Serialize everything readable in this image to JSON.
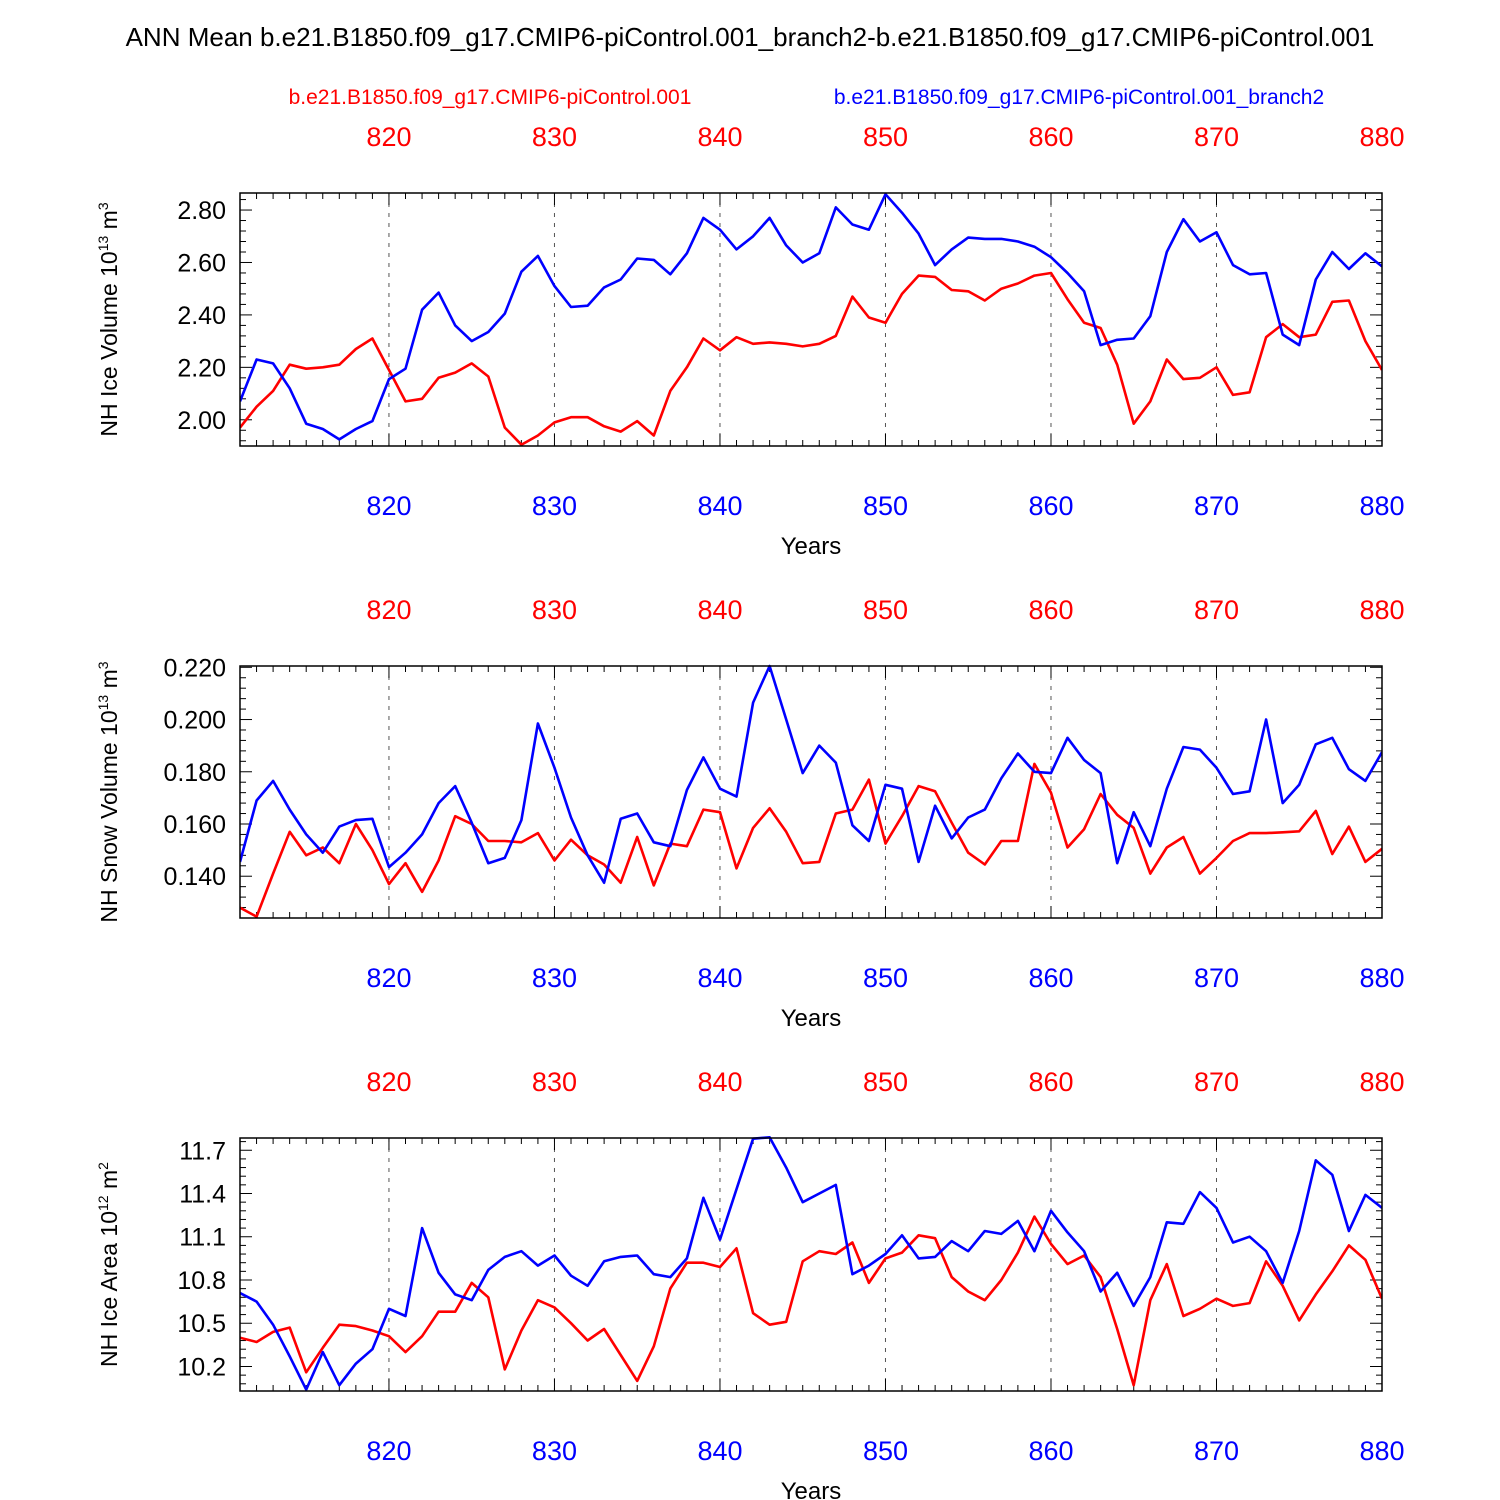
{
  "title": "ANN Mean b.e21.B1850.f09_g17.CMIP6-piControl.001_branch2-b.e21.B1850.f09_g17.CMIP6-piControl.001",
  "legend": [
    {
      "label": "b.e21.B1850.f09_g17.CMIP6-piControl.001",
      "color": "#ff0000"
    },
    {
      "label": "b.e21.B1850.f09_g17.CMIP6-piControl.001_branch2",
      "color": "#0000ff"
    }
  ],
  "colors": {
    "series1": "#ff0000",
    "series2": "#0000ff",
    "axis": "#000000",
    "grid": "#555555"
  },
  "chart_data": [
    {
      "type": "line",
      "id": "ice-volume",
      "ylabel": "NH Ice Volume 10",
      "ylabel_exp": "13",
      "ylabel_unit": " m",
      "ylabel_unit_exp": "3",
      "xlabel": "Years",
      "xlim": [
        811,
        880
      ],
      "ylim": [
        1.9,
        2.865
      ],
      "xticks": [
        820,
        830,
        840,
        850,
        860,
        870,
        880
      ],
      "yticks": [
        2.0,
        2.2,
        2.4,
        2.6,
        2.8
      ],
      "ytick_labels": [
        "2.00",
        "2.20",
        "2.40",
        "2.60",
        "2.80"
      ],
      "series": [
        {
          "name": "b.e21.B1850.f09_g17.CMIP6-piControl.001",
          "color": "#ff0000",
          "start": 811,
          "values": [
            1.97,
            2.05,
            2.11,
            2.21,
            2.195,
            2.2,
            2.21,
            2.27,
            2.31,
            2.19,
            2.07,
            2.08,
            2.16,
            2.18,
            2.215,
            2.165,
            1.97,
            1.905,
            1.94,
            1.99,
            2.01,
            2.01,
            1.975,
            1.955,
            1.995,
            1.94,
            2.11,
            2.2,
            2.31,
            2.265,
            2.315,
            2.29,
            2.295,
            2.29,
            2.28,
            2.29,
            2.32,
            2.47,
            2.39,
            2.37,
            2.48,
            2.55,
            2.545,
            2.495,
            2.49,
            2.455,
            2.5,
            2.52,
            2.55,
            2.56,
            2.46,
            2.37,
            2.35,
            2.21,
            1.985,
            2.07,
            2.23,
            2.155,
            2.16,
            2.2,
            2.095,
            2.105,
            2.315,
            2.365,
            2.315,
            2.325,
            2.45,
            2.455,
            2.3,
            2.19
          ]
        },
        {
          "name": "b.e21.B1850.f09_g17.CMIP6-piControl.001_branch2",
          "color": "#0000ff",
          "start": 811,
          "values": [
            2.07,
            2.23,
            2.215,
            2.12,
            1.985,
            1.965,
            1.925,
            1.965,
            1.995,
            2.155,
            2.195,
            2.42,
            2.485,
            2.36,
            2.3,
            2.335,
            2.405,
            2.565,
            2.625,
            2.51,
            2.43,
            2.435,
            2.505,
            2.535,
            2.615,
            2.61,
            2.555,
            2.635,
            2.77,
            2.725,
            2.65,
            2.7,
            2.77,
            2.665,
            2.6,
            2.635,
            2.81,
            2.745,
            2.725,
            2.86,
            2.79,
            2.71,
            2.59,
            2.65,
            2.695,
            2.69,
            2.69,
            2.68,
            2.66,
            2.62,
            2.56,
            2.49,
            2.285,
            2.305,
            2.31,
            2.395,
            2.64,
            2.765,
            2.68,
            2.715,
            2.59,
            2.555,
            2.56,
            2.325,
            2.285,
            2.535,
            2.64,
            2.575,
            2.635,
            2.585
          ]
        }
      ]
    },
    {
      "type": "line",
      "id": "snow-volume",
      "ylabel": "NH Snow Volume 10",
      "ylabel_exp": "13",
      "ylabel_unit": " m",
      "ylabel_unit_exp": "3",
      "xlabel": "Years",
      "xlim": [
        811,
        880
      ],
      "ylim": [
        0.124,
        0.2205
      ],
      "xticks": [
        820,
        830,
        840,
        850,
        860,
        870,
        880
      ],
      "yticks": [
        0.14,
        0.16,
        0.18,
        0.2,
        0.22
      ],
      "ytick_labels": [
        "0.140",
        "0.160",
        "0.180",
        "0.200",
        "0.220"
      ],
      "series": [
        {
          "name": "b.e21.B1850.f09_g17.CMIP6-piControl.001",
          "color": "#ff0000",
          "start": 811,
          "values": [
            0.128,
            0.1245,
            0.141,
            0.157,
            0.148,
            0.151,
            0.145,
            0.16,
            0.15,
            0.137,
            0.145,
            0.134,
            0.146,
            0.163,
            0.16,
            0.1535,
            0.1535,
            0.153,
            0.1565,
            0.146,
            0.154,
            0.148,
            0.1445,
            0.1375,
            0.155,
            0.1365,
            0.1525,
            0.1515,
            0.1655,
            0.1645,
            0.143,
            0.1585,
            0.166,
            0.157,
            0.145,
            0.1455,
            0.164,
            0.1655,
            0.177,
            0.1525,
            0.163,
            0.1745,
            0.1725,
            0.1605,
            0.149,
            0.1445,
            0.1535,
            0.1535,
            0.183,
            0.172,
            0.151,
            0.158,
            0.1715,
            0.1635,
            0.1585,
            0.141,
            0.151,
            0.155,
            0.141,
            0.147,
            0.1535,
            0.1565,
            0.1565,
            0.1568,
            0.1572,
            0.165,
            0.1485,
            0.159,
            0.1455,
            0.1505
          ]
        },
        {
          "name": "b.e21.B1850.f09_g17.CMIP6-piControl.001_branch2",
          "color": "#0000ff",
          "start": 811,
          "values": [
            0.1455,
            0.169,
            0.1765,
            0.1655,
            0.156,
            0.149,
            0.159,
            0.1615,
            0.162,
            0.1435,
            0.149,
            0.156,
            0.168,
            0.1745,
            0.1605,
            0.145,
            0.147,
            0.1615,
            0.1985,
            0.1815,
            0.1625,
            0.148,
            0.1375,
            0.162,
            0.164,
            0.153,
            0.1515,
            0.173,
            0.1855,
            0.1735,
            0.1705,
            0.2065,
            0.2205,
            0.2,
            0.1795,
            0.19,
            0.1835,
            0.1595,
            0.1535,
            0.175,
            0.1735,
            0.1455,
            0.167,
            0.1545,
            0.1625,
            0.1655,
            0.1775,
            0.187,
            0.18,
            0.1795,
            0.193,
            0.1845,
            0.1795,
            0.145,
            0.1645,
            0.1515,
            0.1735,
            0.1895,
            0.1885,
            0.1815,
            0.1715,
            0.1725,
            0.2,
            0.168,
            0.175,
            0.1905,
            0.193,
            0.181,
            0.1765,
            0.1875
          ]
        }
      ]
    },
    {
      "type": "line",
      "id": "ice-area",
      "ylabel": "NH Ice Area 10",
      "ylabel_exp": "12",
      "ylabel_unit": " m",
      "ylabel_unit_exp": "2",
      "xlabel": "Years",
      "xlim": [
        811,
        880
      ],
      "ylim": [
        10.03,
        11.785
      ],
      "xticks": [
        820,
        830,
        840,
        850,
        860,
        870,
        880
      ],
      "yticks": [
        10.2,
        10.5,
        10.8,
        11.1,
        11.4,
        11.7
      ],
      "ytick_labels": [
        "10.2",
        "10.5",
        "10.8",
        "11.1",
        "11.4",
        "11.7"
      ],
      "series": [
        {
          "name": "b.e21.B1850.f09_g17.CMIP6-piControl.001",
          "color": "#ff0000",
          "start": 811,
          "values": [
            10.4,
            10.37,
            10.44,
            10.47,
            10.16,
            10.33,
            10.49,
            10.48,
            10.45,
            10.41,
            10.3,
            10.41,
            10.58,
            10.58,
            10.78,
            10.68,
            10.18,
            10.45,
            10.66,
            10.61,
            10.5,
            10.38,
            10.46,
            10.28,
            10.1,
            10.34,
            10.74,
            10.92,
            10.92,
            10.89,
            11.02,
            10.57,
            10.49,
            10.51,
            10.93,
            11.0,
            10.98,
            11.06,
            10.78,
            10.95,
            10.99,
            11.11,
            11.09,
            10.82,
            10.72,
            10.66,
            10.8,
            10.99,
            11.24,
            11.05,
            10.91,
            10.97,
            10.82,
            10.46,
            10.07,
            10.66,
            10.91,
            10.55,
            10.6,
            10.67,
            10.62,
            10.64,
            10.93,
            10.76,
            10.52,
            10.7,
            10.86,
            11.04,
            10.94,
            10.67
          ]
        },
        {
          "name": "b.e21.B1850.f09_g17.CMIP6-piControl.001_branch2",
          "color": "#0000ff",
          "start": 811,
          "values": [
            10.71,
            10.65,
            10.49,
            10.27,
            10.04,
            10.3,
            10.07,
            10.22,
            10.32,
            10.6,
            10.55,
            11.16,
            10.85,
            10.7,
            10.66,
            10.87,
            10.96,
            11.0,
            10.9,
            10.97,
            10.83,
            10.76,
            10.93,
            10.96,
            10.97,
            10.84,
            10.82,
            10.95,
            11.37,
            11.08,
            11.43,
            11.78,
            11.79,
            11.58,
            11.34,
            11.4,
            11.46,
            10.84,
            10.9,
            10.98,
            11.11,
            10.95,
            10.96,
            11.07,
            11.0,
            11.14,
            11.12,
            11.21,
            11.0,
            11.28,
            11.13,
            11.0,
            10.72,
            10.85,
            10.62,
            10.82,
            11.2,
            11.19,
            11.41,
            11.3,
            11.06,
            11.1,
            11.0,
            10.78,
            11.14,
            11.63,
            11.53,
            11.14,
            11.39,
            11.3
          ]
        }
      ]
    }
  ]
}
